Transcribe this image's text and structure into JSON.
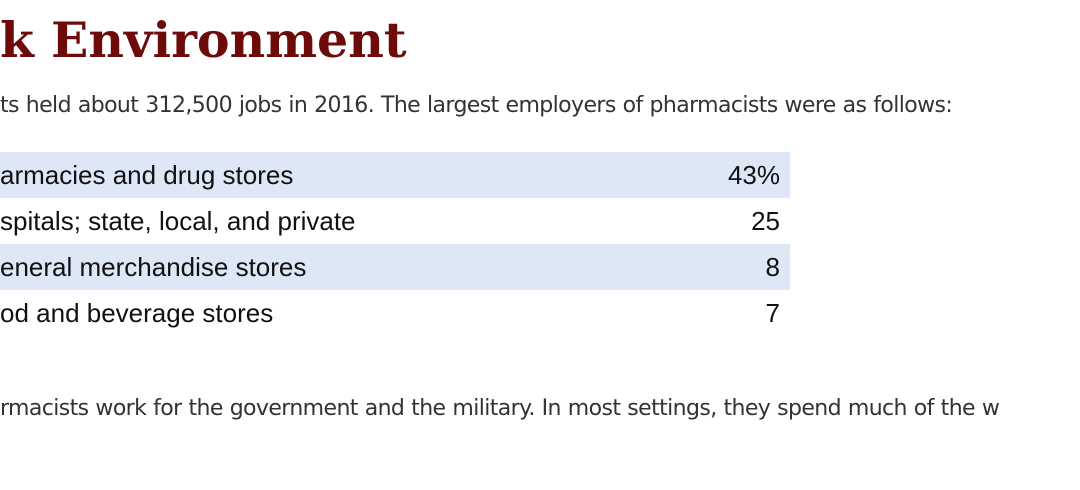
{
  "section": {
    "heading": "k Environment",
    "intro": "ts held about 312,500 jobs in 2016. The largest employers of pharmacists were as follows:",
    "outro": "rmacists work for the government and the military. In most settings, they spend much of the w"
  },
  "employers_table": {
    "rows": [
      {
        "label": "armacies and drug stores",
        "value": "43%"
      },
      {
        "label": "spitals; state, local, and private",
        "value": "25"
      },
      {
        "label": "eneral merchandise stores",
        "value": "8"
      },
      {
        "label": "od and beverage stores",
        "value": "7"
      }
    ]
  },
  "colors": {
    "heading": "#6d0b0b",
    "row_shade": "#dde7f6",
    "body_text": "#333333"
  }
}
